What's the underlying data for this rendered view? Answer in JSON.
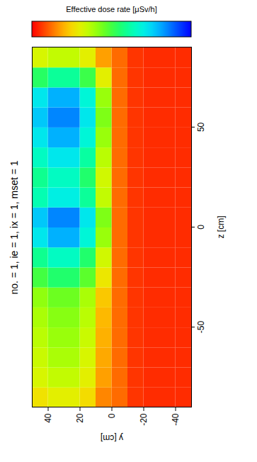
{
  "chart_data": {
    "type": "heatmap",
    "title": "no. = 1, ie = 1, ix = 1, mset = 1",
    "x_label": "z [cm]",
    "y_label": "y [cm]",
    "xlim": [
      -90,
      90
    ],
    "ylim": [
      -50,
      50
    ],
    "xticks": [
      -50,
      0,
      50
    ],
    "yticks": [
      -40,
      -20,
      0,
      20,
      40
    ],
    "x_edges": [
      -90,
      -80,
      -70,
      -60,
      -50,
      -40,
      -30,
      -20,
      -10,
      0,
      10,
      20,
      30,
      40,
      50,
      60,
      70,
      80,
      90
    ],
    "y_edges": [
      -50,
      -40,
      -30,
      -20,
      -10,
      0,
      10,
      20,
      30,
      40,
      50
    ],
    "values": [
      [
        0.05,
        0.05,
        0.05,
        0.06,
        0.12,
        0.15,
        0.26,
        0.3,
        0.3,
        0.27
      ],
      [
        0.05,
        0.05,
        0.05,
        0.06,
        0.12,
        0.18,
        0.3,
        0.35,
        0.35,
        0.32
      ],
      [
        0.05,
        0.05,
        0.05,
        0.06,
        0.12,
        0.19,
        0.32,
        0.38,
        0.38,
        0.34
      ],
      [
        0.05,
        0.05,
        0.05,
        0.06,
        0.12,
        0.2,
        0.34,
        0.4,
        0.4,
        0.36
      ],
      [
        0.05,
        0.05,
        0.05,
        0.06,
        0.12,
        0.21,
        0.36,
        0.42,
        0.42,
        0.38
      ],
      [
        0.05,
        0.05,
        0.05,
        0.06,
        0.12,
        0.23,
        0.38,
        0.45,
        0.45,
        0.41
      ],
      [
        0.05,
        0.05,
        0.05,
        0.06,
        0.12,
        0.28,
        0.47,
        0.55,
        0.55,
        0.5
      ],
      [
        0.05,
        0.05,
        0.05,
        0.06,
        0.12,
        0.33,
        0.55,
        0.65,
        0.65,
        0.59
      ],
      [
        0.05,
        0.05,
        0.05,
        0.06,
        0.12,
        0.4,
        0.68,
        0.8,
        0.8,
        0.72
      ],
      [
        0.05,
        0.05,
        0.05,
        0.06,
        0.12,
        0.43,
        0.72,
        0.85,
        0.85,
        0.77
      ],
      [
        0.05,
        0.05,
        0.05,
        0.06,
        0.12,
        0.35,
        0.6,
        0.7,
        0.7,
        0.63
      ],
      [
        0.05,
        0.05,
        0.05,
        0.06,
        0.12,
        0.33,
        0.55,
        0.65,
        0.65,
        0.59
      ],
      [
        0.05,
        0.05,
        0.05,
        0.06,
        0.12,
        0.36,
        0.61,
        0.72,
        0.72,
        0.65
      ],
      [
        0.05,
        0.05,
        0.05,
        0.06,
        0.12,
        0.4,
        0.68,
        0.8,
        0.8,
        0.72
      ],
      [
        0.05,
        0.05,
        0.05,
        0.06,
        0.12,
        0.43,
        0.72,
        0.85,
        0.85,
        0.77
      ],
      [
        0.05,
        0.05,
        0.05,
        0.06,
        0.12,
        0.4,
        0.68,
        0.8,
        0.8,
        0.72
      ],
      [
        0.05,
        0.05,
        0.05,
        0.06,
        0.12,
        0.3,
        0.51,
        0.6,
        0.6,
        0.54
      ],
      [
        0.05,
        0.05,
        0.05,
        0.06,
        0.12,
        0.18,
        0.3,
        0.35,
        0.35,
        0.32
      ]
    ],
    "colorbar": {
      "label": "Effective dose rate [μSv/h]",
      "range": [
        0,
        1
      ]
    }
  }
}
